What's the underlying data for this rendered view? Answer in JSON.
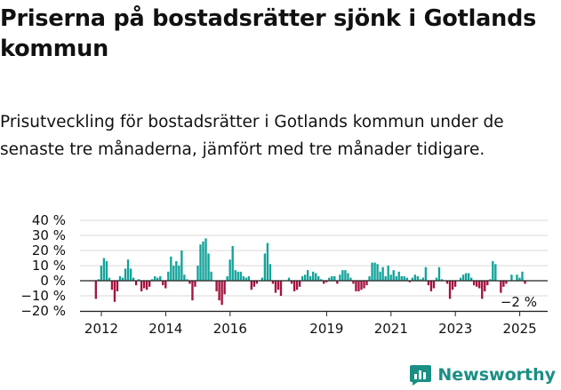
{
  "header": {
    "title": "Priserna på bostadsrätter sjönk i Gotlands kommun",
    "subtitle": "Prisutveckling för bostadsrätter i Gotlands kommun under de senaste tre månaderna, jämfört med tre månader tidigare."
  },
  "brand": {
    "name": "Newsworthy",
    "icon": "newsworthy-logo-icon"
  },
  "colors": {
    "positive": "#12a39a",
    "negative": "#a4133f",
    "axis": "#222222",
    "grid": "#d9d9d9",
    "text": "#111111",
    "brand": "#1a8f84"
  },
  "chart_data": {
    "type": "bar",
    "title": "",
    "xlabel": "",
    "ylabel": "",
    "ylim": [
      -20,
      40
    ],
    "y_ticks": [
      -20,
      -10,
      0,
      10,
      20,
      30,
      40
    ],
    "y_tick_labels": [
      "−20 %",
      "−10 %",
      "0 %",
      "10 %",
      "20 %",
      "30 %",
      "40 %"
    ],
    "x_ticks": [
      2012,
      2014,
      2016,
      2019,
      2021,
      2023,
      2025
    ],
    "x_tick_labels": [
      "2012",
      "2014",
      "2016",
      "2019",
      "2021",
      "2023",
      "2025"
    ],
    "grid": true,
    "x_start": 2011.83,
    "period_months": 1,
    "values": [
      -12,
      1,
      10,
      15,
      13,
      2,
      -6,
      -14,
      -7,
      3,
      2,
      8,
      14,
      8,
      2,
      -3,
      1,
      -7,
      -5,
      -6,
      -4,
      1,
      3,
      2,
      3,
      -3,
      -5,
      6,
      16,
      10,
      13,
      10,
      20,
      4,
      1,
      -2,
      -13,
      -4,
      10,
      24,
      26,
      28,
      18,
      6,
      0,
      -7,
      -13,
      -16,
      -9,
      3,
      14,
      23,
      7,
      6,
      6,
      3,
      2,
      3,
      -6,
      -4,
      -2,
      0,
      2,
      18,
      25,
      11,
      -2,
      -8,
      -6,
      -10,
      0,
      0,
      2,
      -2,
      -7,
      -6,
      -4,
      3,
      4,
      7,
      3,
      6,
      5,
      3,
      1,
      -2,
      -1,
      2,
      3,
      3,
      -2,
      4,
      7,
      7,
      5,
      2,
      -2,
      -7,
      -7,
      -6,
      -5,
      -3,
      3,
      12,
      12,
      11,
      6,
      9,
      3,
      10,
      4,
      7,
      3,
      6,
      3,
      3,
      2,
      -1,
      2,
      4,
      3,
      1,
      2,
      9,
      -3,
      -7,
      -5,
      2,
      9,
      1,
      0,
      -2,
      -12,
      -6,
      -4,
      0,
      2,
      4,
      5,
      5,
      2,
      -3,
      -4,
      -5,
      -12,
      -7,
      -3,
      1,
      13,
      11,
      0,
      -8,
      -4,
      -2,
      0,
      4,
      0,
      4,
      2,
      6,
      -2
    ],
    "annotation": "−2 %"
  }
}
